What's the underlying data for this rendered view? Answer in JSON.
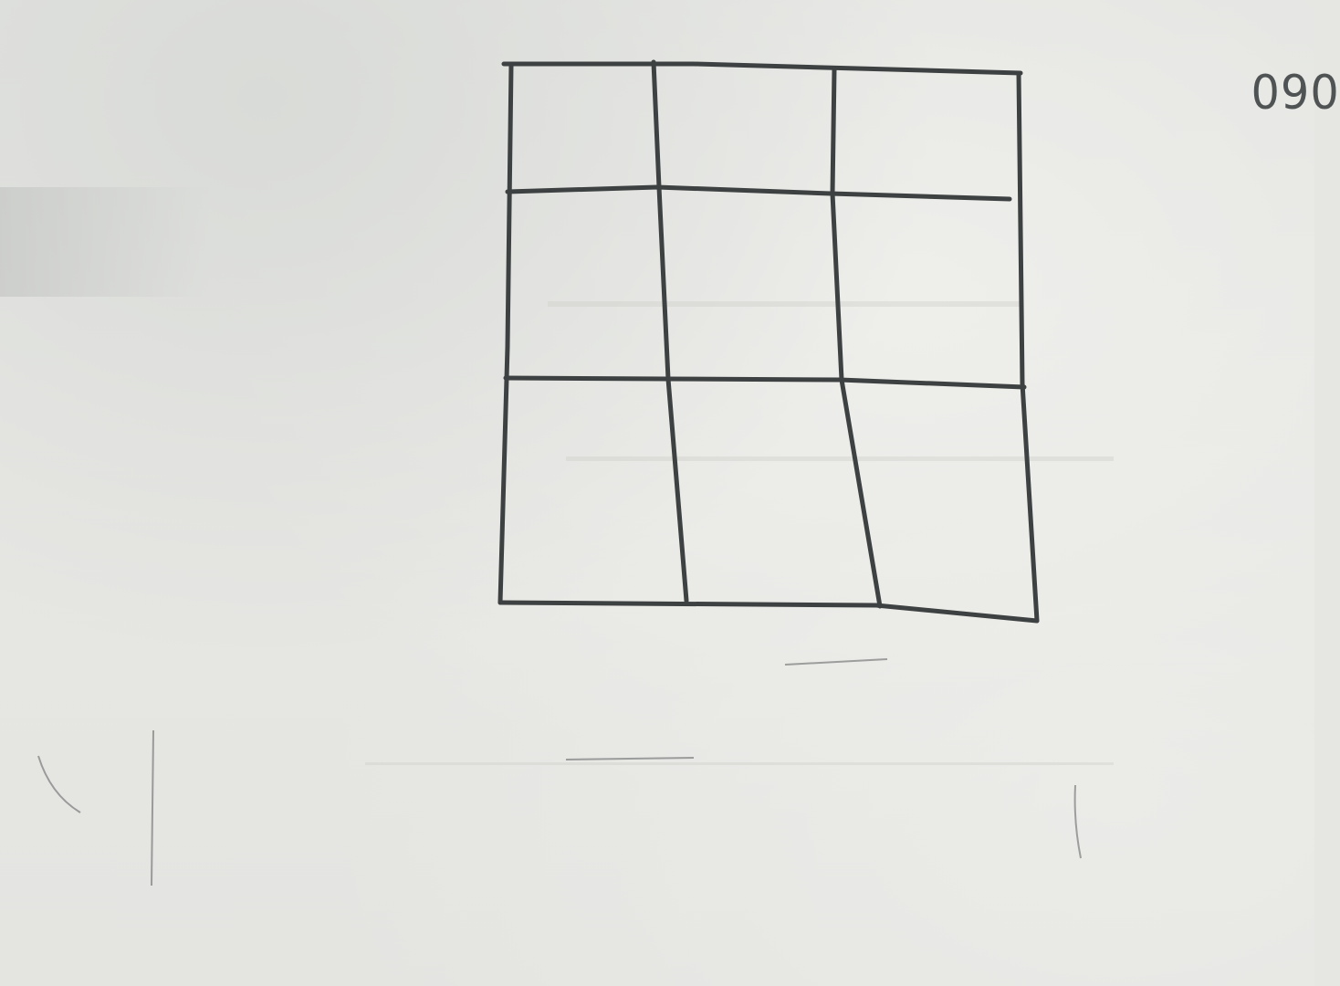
{
  "scene": {
    "surface": "whiteboard",
    "ink_color": "#3e4142",
    "board_color": "#e6e6e3"
  },
  "grid": {
    "rows": 3,
    "columns": 3
  },
  "corner_text": "090"
}
